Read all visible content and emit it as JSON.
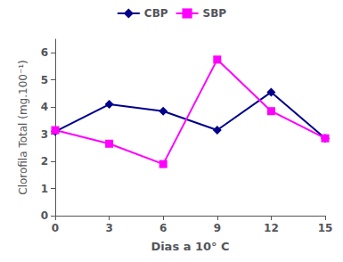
{
  "chart_data": {
    "type": "line",
    "xlabel": "Dias a 10° C",
    "ylabel": "Clorofila Total (mg.100⁻¹)",
    "x": [
      0,
      3,
      6,
      9,
      12,
      15
    ],
    "xlim": [
      0,
      15
    ],
    "xticks": [
      0,
      3,
      6,
      9,
      12,
      15
    ],
    "ylim": [
      0,
      6.5
    ],
    "yticks": [
      0,
      1,
      2,
      3,
      4,
      5,
      6
    ],
    "grid": false,
    "legend": "top",
    "series": [
      {
        "name": "CBP",
        "color": "#00008B",
        "marker": "diamond",
        "values": [
          3.1,
          4.1,
          3.85,
          3.15,
          4.55,
          2.85
        ]
      },
      {
        "name": "SBP",
        "color": "#FF00FF",
        "marker": "square",
        "values": [
          3.15,
          2.65,
          1.9,
          5.75,
          3.85,
          2.85
        ]
      }
    ]
  }
}
